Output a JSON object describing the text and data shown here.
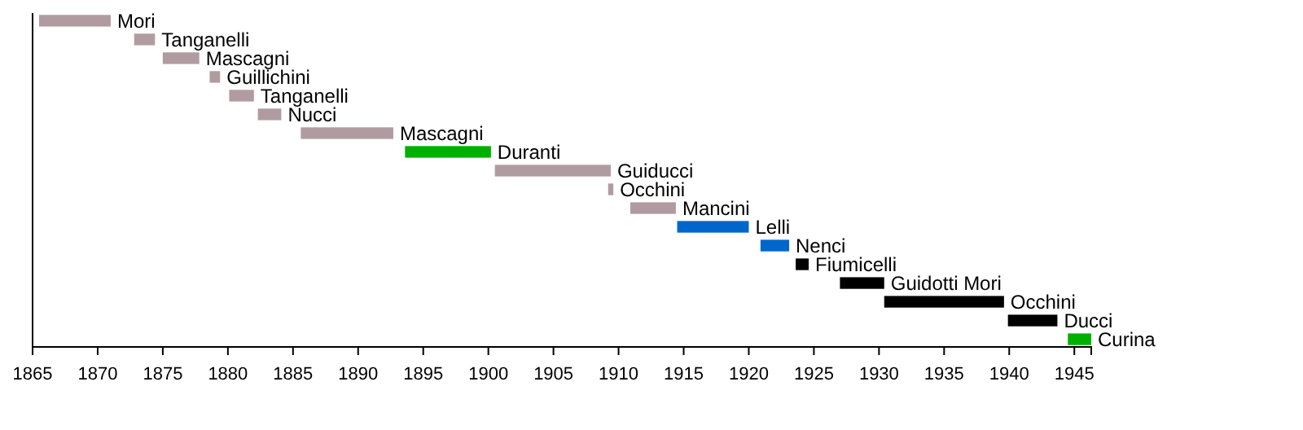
{
  "chart_data": {
    "type": "bar",
    "orientation": "horizontal",
    "categories": [
      "Mori",
      "Tanganelli",
      "Mascagni",
      "Guillichini",
      "Tanganelli",
      "Nucci",
      "Mascagni",
      "Duranti",
      "Guiducci",
      "Occhini",
      "Mancini",
      "Lelli",
      "Nenci",
      "Fiumicelli",
      "Guidotti Mori",
      "Occhini",
      "Ducci",
      "Curina"
    ],
    "base": [
      1865.5,
      1872.8,
      1875,
      1878.6,
      1880.1,
      1882.3,
      1885.6,
      1893.6,
      1900.5,
      1909.2,
      1910.9,
      1914.5,
      1920.9,
      1923.6,
      1927,
      1930.4,
      1939.9,
      1944.5
    ],
    "values": [
      5.5,
      1.6,
      2.8,
      0.8,
      1.9,
      1.8,
      7.1,
      6.6,
      8.9,
      0.4,
      3.5,
      5.5,
      2.2,
      1.0,
      3.4,
      9.2,
      3.8,
      1.8
    ],
    "colors": [
      "#b09ca0",
      "#b09ca0",
      "#b09ca0",
      "#b09ca0",
      "#b09ca0",
      "#b09ca0",
      "#b09ca0",
      "#00b000",
      "#b09ca0",
      "#b09ca0",
      "#b09ca0",
      "#0066cc",
      "#0066cc",
      "#000000",
      "#000000",
      "#000000",
      "#000000",
      "#00b000"
    ],
    "xlim": [
      1865,
      1946.3
    ],
    "xticks": [
      1865,
      1870,
      1875,
      1880,
      1885,
      1890,
      1895,
      1900,
      1905,
      1910,
      1915,
      1920,
      1925,
      1930,
      1935,
      1940,
      1945
    ],
    "tick_labels": "x"
  }
}
